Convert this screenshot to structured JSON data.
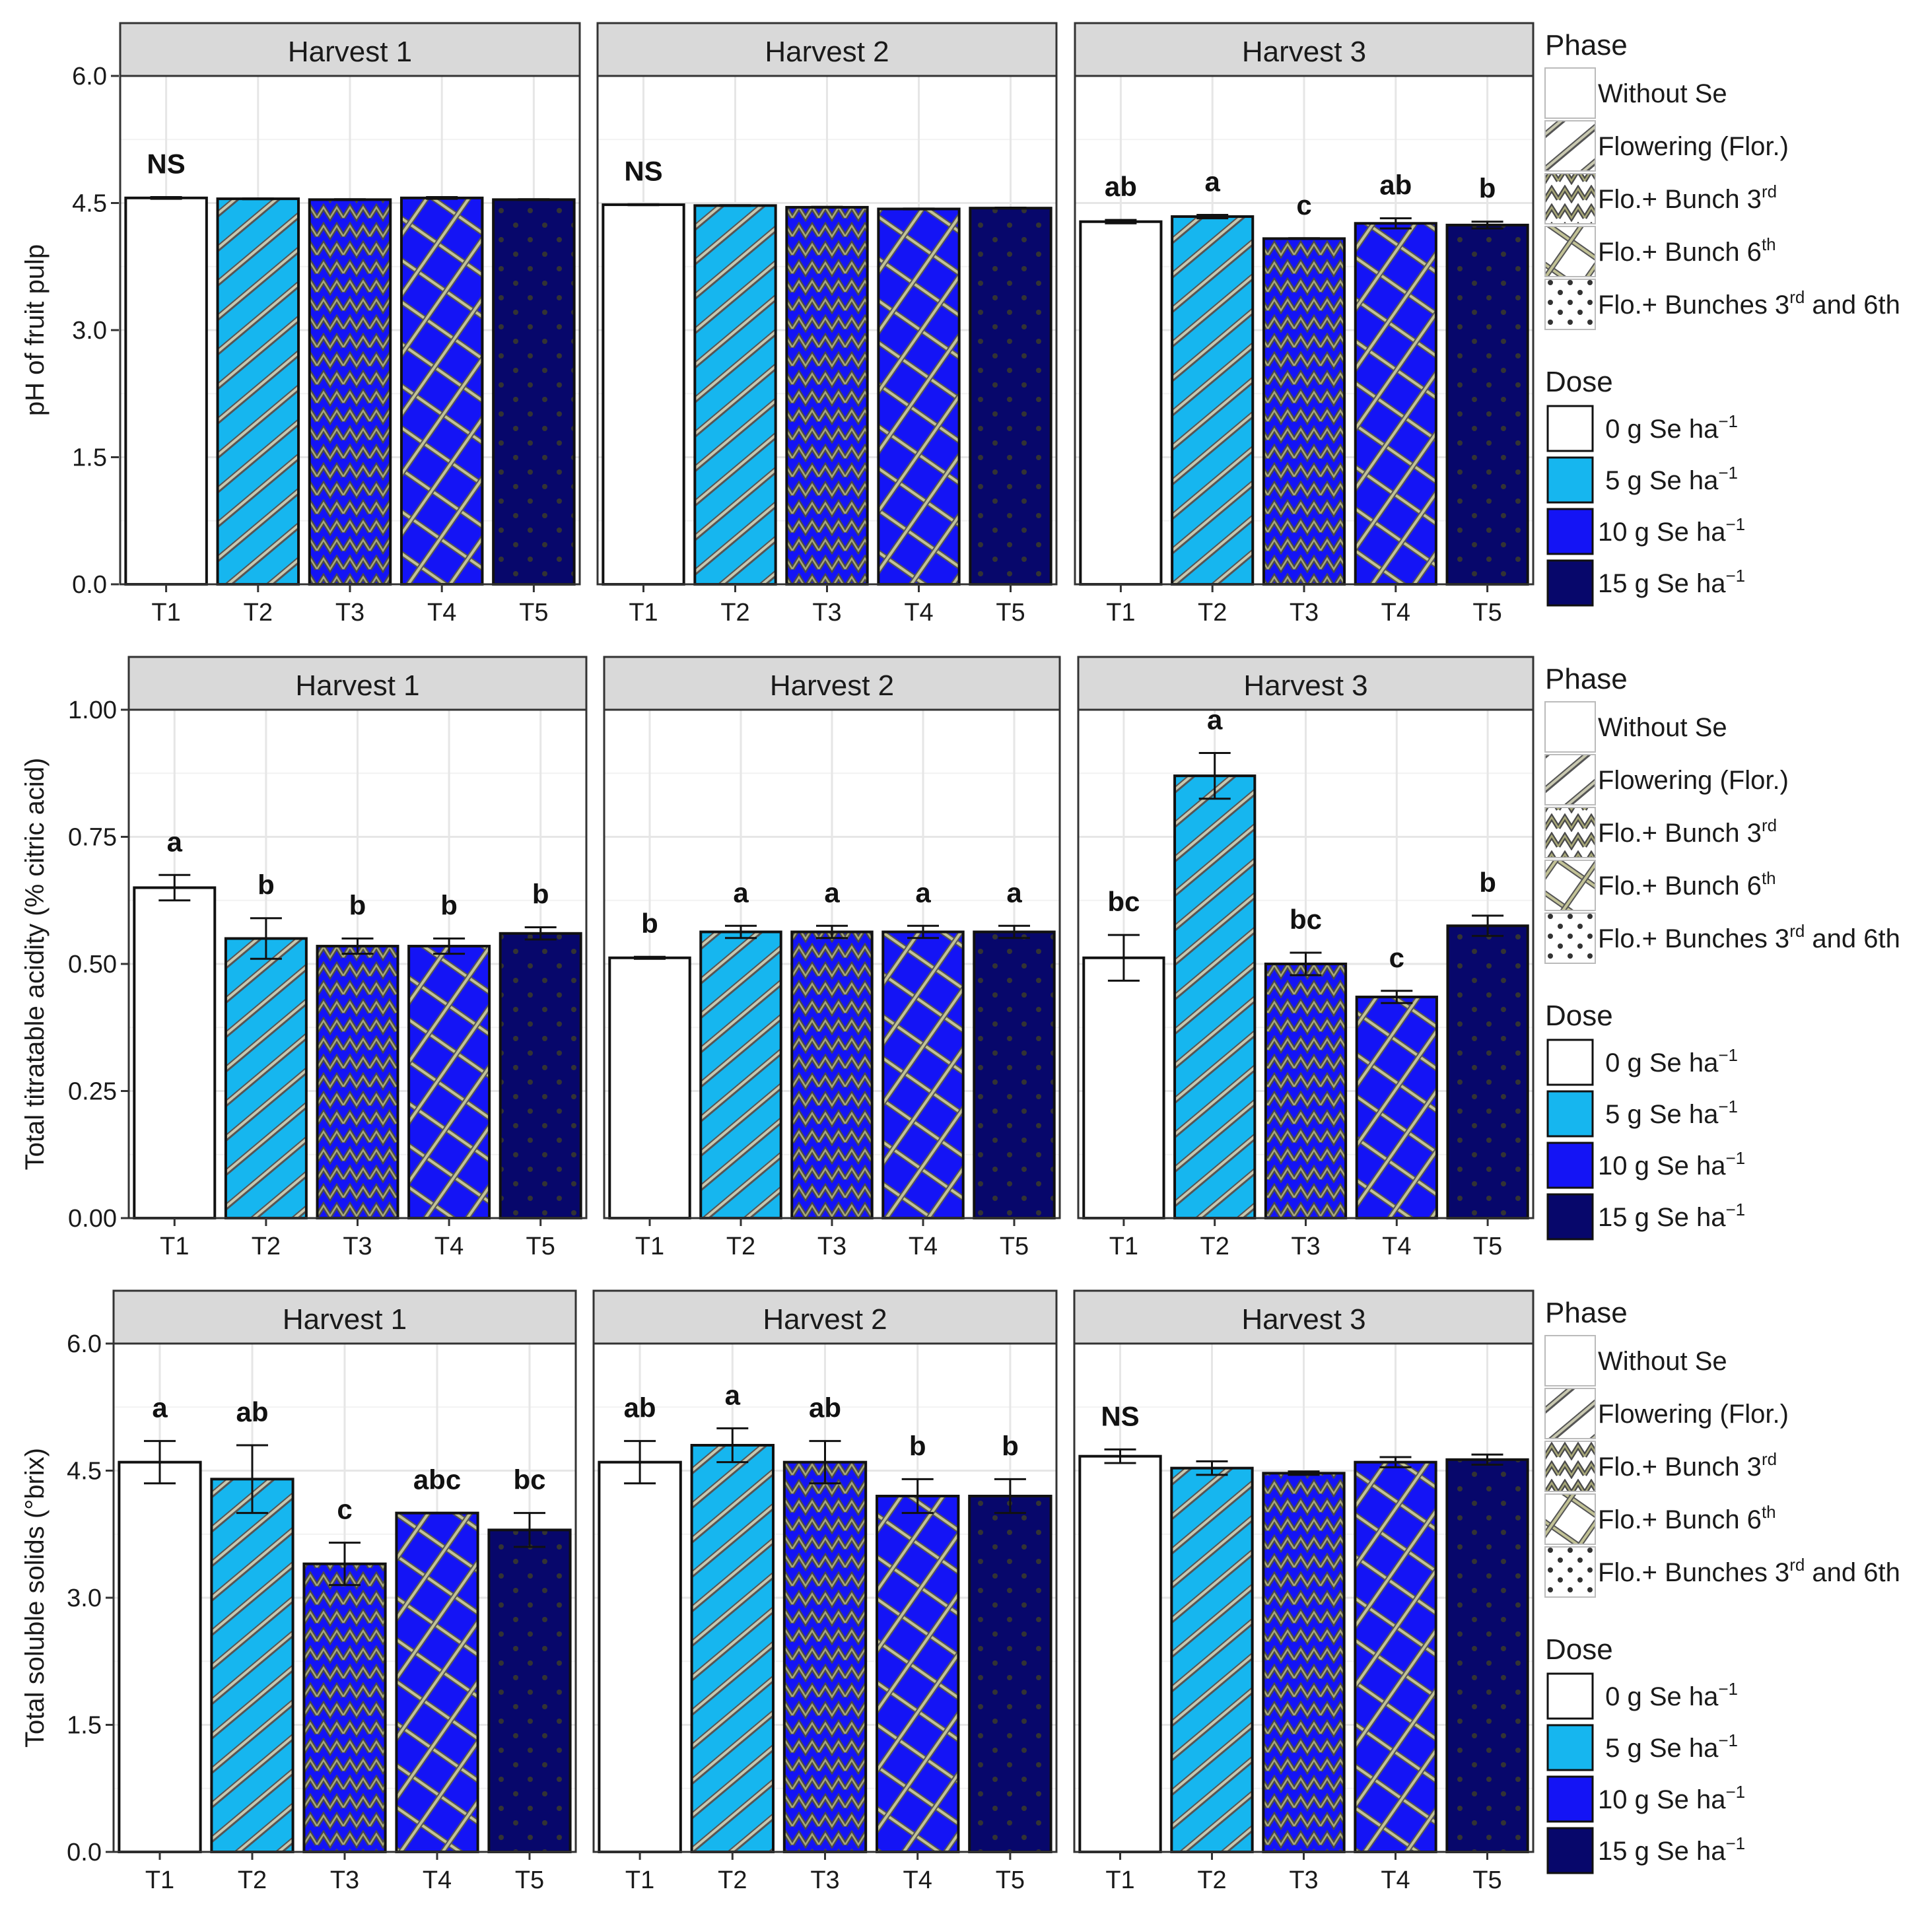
{
  "legend": {
    "phase_title": "Phase",
    "phase_items": [
      {
        "label": "Without Se",
        "pattern": "none",
        "sup": "",
        "tail": ""
      },
      {
        "label": "Flowering (Flor.)",
        "pattern": "stripe",
        "sup": "",
        "tail": ""
      },
      {
        "label": "Flo.+ Bunch 3",
        "pattern": "zigzag",
        "sup": "rd",
        "tail": ""
      },
      {
        "label": "Flo.+ Bunch 6",
        "pattern": "crosshatch",
        "sup": "th",
        "tail": ""
      },
      {
        "label": "Flo.+ Bunches 3",
        "pattern": "dots",
        "sup": "rd",
        "tail": " and 6th"
      }
    ],
    "dose_title": "Dose",
    "dose_items": [
      {
        "label": "0 g Se ha",
        "sup": "−1",
        "color": "#ffffff"
      },
      {
        "label": "5 g Se ha",
        "sup": "−1",
        "color": "#16b6ef"
      },
      {
        "label": "10 g Se ha",
        "sup": "−1",
        "color": "#1414f5"
      },
      {
        "label": "15 g Se ha",
        "sup": "−1",
        "color": "#07076b"
      }
    ]
  },
  "chart_data": [
    {
      "type": "bar",
      "ylabel": "pH of fruit pulp",
      "ylim": [
        0,
        6
      ],
      "yticks": [
        "0.0",
        "1.5",
        "3.0",
        "4.5",
        "6.0"
      ],
      "categories": [
        "T1",
        "T2",
        "T3",
        "T4",
        "T5"
      ],
      "panels": [
        {
          "title": "Harvest 1",
          "values": [
            4.56,
            4.55,
            4.54,
            4.56,
            4.54
          ],
          "errors": [
            0.01,
            0.005,
            0.005,
            0.01,
            0.005
          ],
          "labels": [
            "NS",
            "",
            "",
            "",
            ""
          ]
        },
        {
          "title": "Harvest 2",
          "values": [
            4.48,
            4.47,
            4.45,
            4.43,
            4.44
          ],
          "errors": [
            0.005,
            0.005,
            0.005,
            0.005,
            0.005
          ],
          "labels": [
            "NS",
            "",
            "",
            "",
            ""
          ]
        },
        {
          "title": "Harvest 3",
          "values": [
            4.28,
            4.34,
            4.08,
            4.26,
            4.24
          ],
          "errors": [
            0.02,
            0.02,
            0.005,
            0.06,
            0.04
          ],
          "labels": [
            "ab",
            "a",
            "c",
            "ab",
            "b"
          ]
        }
      ]
    },
    {
      "type": "bar",
      "ylabel": "Total titratable acidity (% citric acid)",
      "ylim": [
        0,
        1
      ],
      "yticks": [
        "0.00",
        "0.25",
        "0.50",
        "0.75",
        "1.00"
      ],
      "categories": [
        "T1",
        "T2",
        "T3",
        "T4",
        "T5"
      ],
      "panels": [
        {
          "title": "Harvest 1",
          "values": [
            0.65,
            0.55,
            0.535,
            0.535,
            0.56
          ],
          "errors": [
            0.025,
            0.04,
            0.015,
            0.015,
            0.012
          ],
          "labels": [
            "a",
            "b",
            "b",
            "b",
            "b"
          ]
        },
        {
          "title": "Harvest 2",
          "values": [
            0.512,
            0.563,
            0.563,
            0.563,
            0.563
          ],
          "errors": [
            0.002,
            0.012,
            0.012,
            0.012,
            0.012
          ],
          "labels": [
            "b",
            "a",
            "a",
            "a",
            "a"
          ]
        },
        {
          "title": "Harvest 3",
          "values": [
            0.512,
            0.87,
            0.5,
            0.435,
            0.575
          ],
          "errors": [
            0.045,
            0.045,
            0.022,
            0.012,
            0.02
          ],
          "labels": [
            "bc",
            "a",
            "bc",
            "c",
            "b"
          ]
        }
      ]
    },
    {
      "type": "bar",
      "ylabel": "Total soluble solids (°brix)",
      "ylim": [
        0,
        6
      ],
      "yticks": [
        "0.0",
        "1.5",
        "3.0",
        "4.5",
        "6.0"
      ],
      "categories": [
        "T1",
        "T2",
        "T3",
        "T4",
        "T5"
      ],
      "panels": [
        {
          "title": "Harvest 1",
          "values": [
            4.6,
            4.4,
            3.4,
            4.0,
            3.8
          ],
          "errors": [
            0.25,
            0.4,
            0.25,
            0.0,
            0.2
          ],
          "labels": [
            "a",
            "ab",
            "c",
            "abc",
            "bc"
          ]
        },
        {
          "title": "Harvest 2",
          "values": [
            4.6,
            4.8,
            4.6,
            4.2,
            4.2
          ],
          "errors": [
            0.25,
            0.2,
            0.25,
            0.2,
            0.2
          ],
          "labels": [
            "ab",
            "a",
            "ab",
            "b",
            "b"
          ]
        },
        {
          "title": "Harvest 3",
          "values": [
            4.67,
            4.53,
            4.47,
            4.6,
            4.63
          ],
          "errors": [
            0.08,
            0.08,
            0.02,
            0.06,
            0.06
          ],
          "labels": [
            "NS",
            "",
            "",
            "",
            ""
          ]
        }
      ]
    }
  ]
}
